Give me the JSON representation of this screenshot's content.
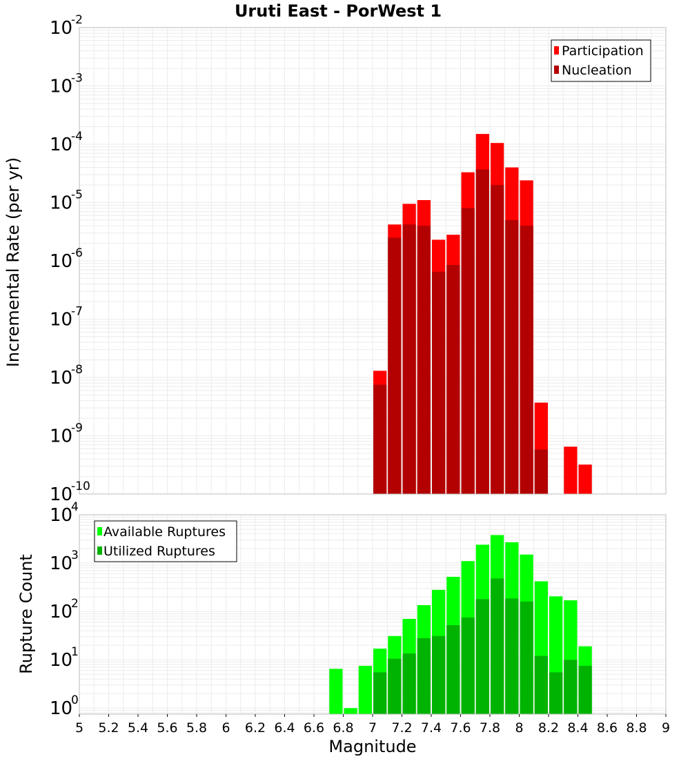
{
  "title": "Uruti East - PorWest 1",
  "colors": {
    "participation": "#ff0000",
    "nucleation": "#b30000",
    "available": "#00ff00",
    "utilized": "#00b300",
    "grid": "#ebebeb",
    "frame": "#bbbbbb"
  },
  "chart_data": [
    {
      "type": "bar",
      "ylabel": "Incremental Rate (per yr)",
      "xlabel": "",
      "xlim": [
        5,
        9
      ],
      "ylim": [
        1e-10,
        0.01
      ],
      "yscale": "log",
      "grid": true,
      "legend": "top-right",
      "y_tick_exponents": [
        "-10",
        "-9",
        "-8",
        "-7",
        "-6",
        "-5",
        "-4",
        "-3",
        "-2"
      ],
      "bin_width": 0.1,
      "series": [
        {
          "name": "Participation",
          "x": [
            7.05,
            7.15,
            7.25,
            7.35,
            7.45,
            7.55,
            7.65,
            7.75,
            7.85,
            7.95,
            8.05,
            8.15,
            8.25,
            8.35,
            8.45
          ],
          "values": [
            1.3e-08,
            4.2e-06,
            9.5e-06,
            1.1e-05,
            2.3e-06,
            2.8e-06,
            3.3e-05,
            0.00015,
            0.000105,
            4e-05,
            2.4e-05,
            3.7e-09,
            null,
            6.5e-10,
            3.2e-10
          ]
        },
        {
          "name": "Nucleation",
          "x": [
            7.05,
            7.15,
            7.25,
            7.35,
            7.45,
            7.55,
            7.65,
            7.75,
            7.85,
            7.95,
            8.05,
            8.15
          ],
          "values": [
            7.5e-09,
            2.5e-06,
            4.2e-06,
            4e-06,
            6.5e-07,
            8.5e-07,
            8e-06,
            3.7e-05,
            2e-05,
            5e-06,
            4e-06,
            5.8e-10
          ]
        }
      ]
    },
    {
      "type": "bar",
      "ylabel": "Rupture Count",
      "xlabel": "Magnitude",
      "xlim": [
        5,
        9
      ],
      "ylim": [
        0.75,
        10000
      ],
      "yscale": "log",
      "grid": true,
      "legend": "top-left",
      "y_tick_exponents": [
        "0",
        "1",
        "2",
        "3",
        "4"
      ],
      "x_ticks": [
        "5",
        "5.2",
        "5.4",
        "5.6",
        "5.8",
        "6",
        "6.2",
        "6.4",
        "6.6",
        "6.8",
        "7",
        "7.2",
        "7.4",
        "7.6",
        "7.8",
        "8",
        "8.2",
        "8.4",
        "8.6",
        "8.8",
        "9"
      ],
      "bin_width": 0.1,
      "series": [
        {
          "name": "Available Ruptures",
          "x": [
            6.75,
            6.85,
            6.95,
            7.05,
            7.15,
            7.25,
            7.35,
            7.45,
            7.55,
            7.65,
            7.75,
            7.85,
            7.95,
            8.05,
            8.15,
            8.25,
            8.35,
            8.45
          ],
          "values": [
            6.5,
            1.0,
            7.5,
            17,
            31,
            70,
            135,
            280,
            520,
            1100,
            2400,
            3800,
            2700,
            1500,
            420,
            205,
            170,
            19
          ]
        },
        {
          "name": "Utilized Ruptures",
          "x": [
            6.75,
            6.85,
            6.95,
            7.05,
            7.15,
            7.25,
            7.35,
            7.45,
            7.55,
            7.65,
            7.75,
            7.85,
            7.95,
            8.05,
            8.15,
            8.25,
            8.35,
            8.45
          ],
          "values": [
            null,
            null,
            null,
            5.5,
            10.5,
            13.5,
            28,
            31,
            52,
            75,
            180,
            480,
            185,
            160,
            12,
            5.5,
            10,
            7.5
          ]
        }
      ]
    }
  ]
}
